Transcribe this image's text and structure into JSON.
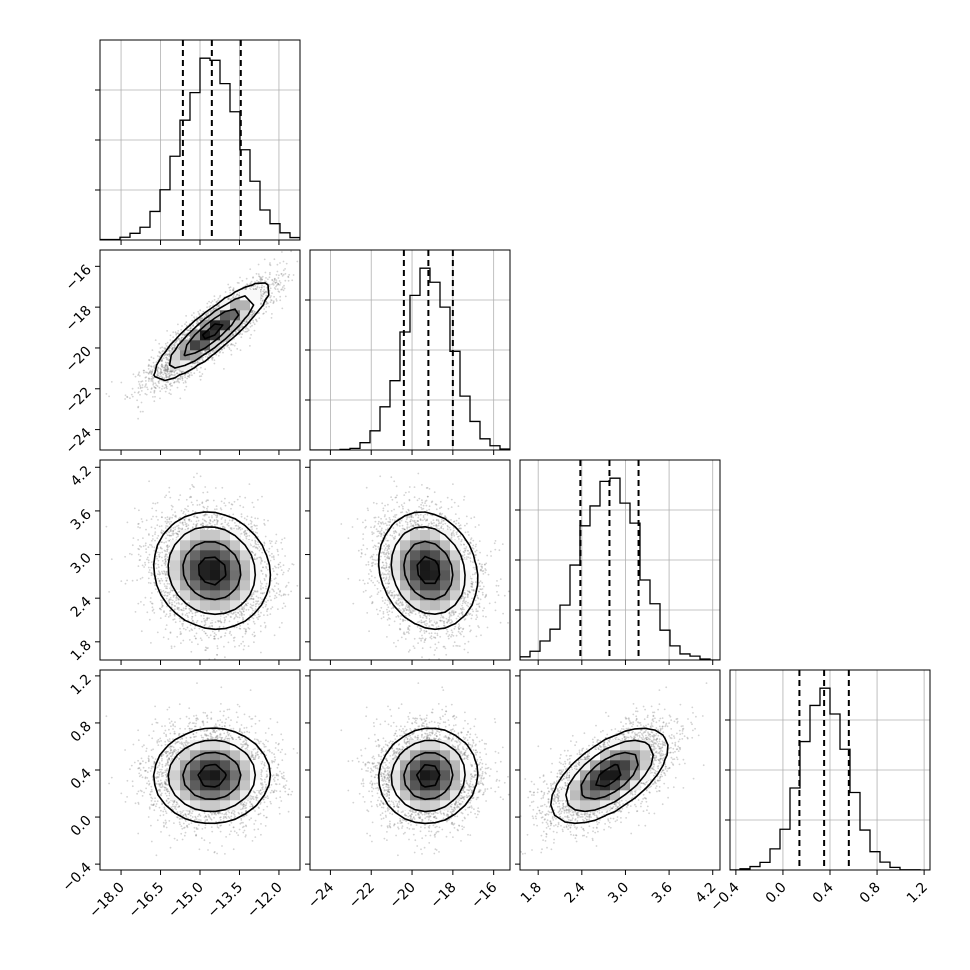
{
  "chart_data": {
    "type": "corner",
    "histogram_bins": 20,
    "quantile_markers": "dashed",
    "colors": {
      "hist_line": "#000000",
      "quantile_line": "#000000",
      "grid": "#b0b0b0",
      "scatter": "#808080",
      "density": "#000000",
      "contour": "#000000"
    },
    "params": [
      {
        "range": [
          -18.8,
          -11.2
        ],
        "mean": -14.55,
        "sd": 1.1,
        "quantiles": [
          -15.65,
          -14.55,
          -13.45
        ],
        "ticks": [
          {
            "v": -18.0,
            "label": "−18.0"
          },
          {
            "v": -16.5,
            "label": "−16.5"
          },
          {
            "v": -15.0,
            "label": "−15.0"
          },
          {
            "v": -13.5,
            "label": "−13.5"
          },
          {
            "v": -12.0,
            "label": "−12.0"
          }
        ]
      },
      {
        "range": [
          -25.0,
          -15.2
        ],
        "mean": -19.2,
        "sd": 1.2,
        "quantiles": [
          -20.4,
          -19.2,
          -18.0
        ],
        "ticks": [
          {
            "v": -24,
            "label": "−24"
          },
          {
            "v": -22,
            "label": "−22"
          },
          {
            "v": -20,
            "label": "−20"
          },
          {
            "v": -18,
            "label": "−18"
          },
          {
            "v": -16,
            "label": "−16"
          }
        ]
      },
      {
        "range": [
          1.55,
          4.3
        ],
        "mean": 2.78,
        "sd": 0.4,
        "quantiles": [
          2.38,
          2.78,
          3.18
        ],
        "ticks": [
          {
            "v": 1.8,
            "label": "1.8"
          },
          {
            "v": 2.4,
            "label": "2.4"
          },
          {
            "v": 3.0,
            "label": "3.0"
          },
          {
            "v": 3.6,
            "label": "3.6"
          },
          {
            "v": 4.2,
            "label": "4.2"
          }
        ]
      },
      {
        "range": [
          -0.45,
          1.25
        ],
        "mean": 0.35,
        "sd": 0.2,
        "quantiles": [
          0.14,
          0.35,
          0.56
        ],
        "ticks": [
          {
            "v": -0.4,
            "label": "−0.4"
          },
          {
            "v": 0.0,
            "label": "0.0"
          },
          {
            "v": 0.4,
            "label": "0.4"
          },
          {
            "v": 0.8,
            "label": "0.8"
          },
          {
            "v": 1.2,
            "label": "1.2"
          }
        ]
      }
    ],
    "correlations": [
      {
        "pair": [
          0,
          1
        ],
        "r": 0.88
      },
      {
        "pair": [
          0,
          2
        ],
        "r": -0.08
      },
      {
        "pair": [
          1,
          2
        ],
        "r": -0.15
      },
      {
        "pair": [
          0,
          3
        ],
        "r": 0.02
      },
      {
        "pair": [
          1,
          3
        ],
        "r": 0.05
      },
      {
        "pair": [
          2,
          3
        ],
        "r": 0.6
      }
    ],
    "samples": 8000,
    "grid": true
  }
}
